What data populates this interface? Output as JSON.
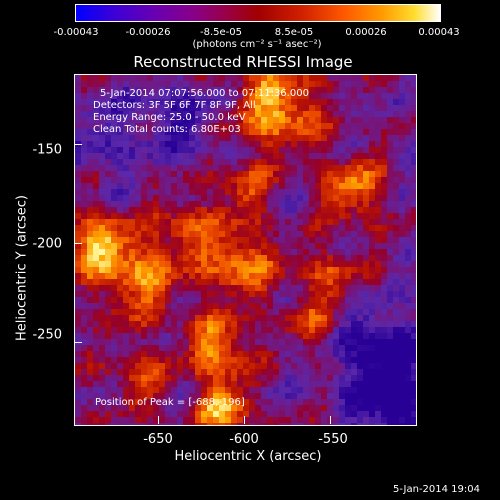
{
  "colorbar": {
    "ticks": [
      "-0.00043",
      "-0.00026",
      "-8.5e-05",
      "8.5e-05",
      "0.00026",
      "0.00043"
    ],
    "units": "(photons cm⁻² s⁻¹ asec⁻²)"
  },
  "title": "Reconstructed RHESSI Image",
  "info": {
    "time": "5-Jan-2014 07:07:56.000 to 07:11:36.000",
    "detectors": "Detectors: 3F 5F 6F 7F 8F 9F, All",
    "energy": "Energy Range: 25.0 - 50.0 keV",
    "clean": "Clean     Total counts: 6.80E+03",
    "peak": "Position of Peak = [-688,-196]"
  },
  "axes": {
    "xlabel": "Heliocentric X (arcsec)",
    "ylabel": "Heliocentric Y (arcsec)",
    "xticks": [
      "-650",
      "-600",
      "-550"
    ],
    "yticks": [
      "-150",
      "-200",
      "-250"
    ]
  },
  "footer": "5-Jan-2014 19:04"
}
